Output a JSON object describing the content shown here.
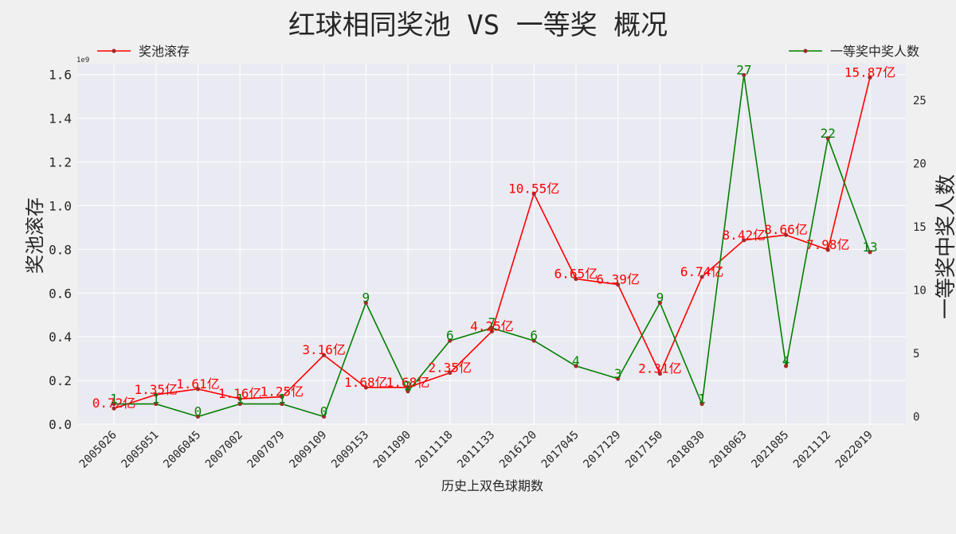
{
  "chart_data": {
    "type": "line",
    "title": "红球相同奖池 VS 一等奖 概况",
    "xlabel": "历史上双色球期数",
    "ylabel": "奖池滚存",
    "y2label": "一等奖中奖人数",
    "y_offset_text": "1e9",
    "categories": [
      "2005026",
      "2005051",
      "2006045",
      "2007002",
      "2007079",
      "2009109",
      "2009153",
      "2011090",
      "2011118",
      "2011133",
      "2016120",
      "2017045",
      "2017129",
      "2017150",
      "2018030",
      "2018063",
      "2021085",
      "2021112",
      "2022019"
    ],
    "ylim": [
      0,
      1.65
    ],
    "y2lim": [
      -0.6,
      27.9
    ],
    "yticks": [
      "0.0",
      "0.2",
      "0.4",
      "0.6",
      "0.8",
      "1.0",
      "1.2",
      "1.4",
      "1.6"
    ],
    "y2ticks": [
      "0",
      "5",
      "10",
      "15",
      "20",
      "25"
    ],
    "grid": true,
    "series": [
      {
        "name": "奖池滚存",
        "axis": "left",
        "color": "#ff0000",
        "values": [
          0.0721,
          0.1351,
          0.1611,
          0.1161,
          0.1251,
          0.3161,
          0.1681,
          0.1681,
          0.2351,
          0.4251,
          1.0551,
          0.6651,
          0.6391,
          0.2311,
          0.6741,
          0.8421,
          0.8661,
          0.7981,
          1.5871
        ],
        "labels": [
          "0.72亿",
          "1.35亿",
          "1.61亿",
          "1.16亿",
          "1.25亿",
          "3.16亿",
          "1.68亿",
          "1.68亿",
          "2.35亿",
          "4.25亿",
          "10.55亿",
          "6.65亿",
          "6.39亿",
          "2.31亿",
          "6.74亿",
          "8.42亿",
          "8.66亿",
          "7.98亿",
          "15.87亿"
        ],
        "legend_position": "top-left"
      },
      {
        "name": "一等奖中奖人数",
        "axis": "right",
        "color": "#008000",
        "values": [
          1,
          1,
          0,
          1,
          1,
          0,
          9,
          2,
          6,
          7,
          6,
          4,
          3,
          9,
          1,
          27,
          4,
          22,
          13
        ],
        "labels": [
          "1",
          "1",
          "0",
          "1",
          "1",
          "0",
          "9",
          "2",
          "6",
          "7",
          "6",
          "4",
          "3",
          "9",
          "1",
          "27",
          "4",
          "22",
          "13"
        ],
        "legend_position": "top-right"
      }
    ],
    "colors": {
      "background": "#f0f0f0",
      "plot_background": "#eaeaf2",
      "grid": "#ffffff",
      "marker": "#a52a2a",
      "text": "#262626"
    }
  }
}
